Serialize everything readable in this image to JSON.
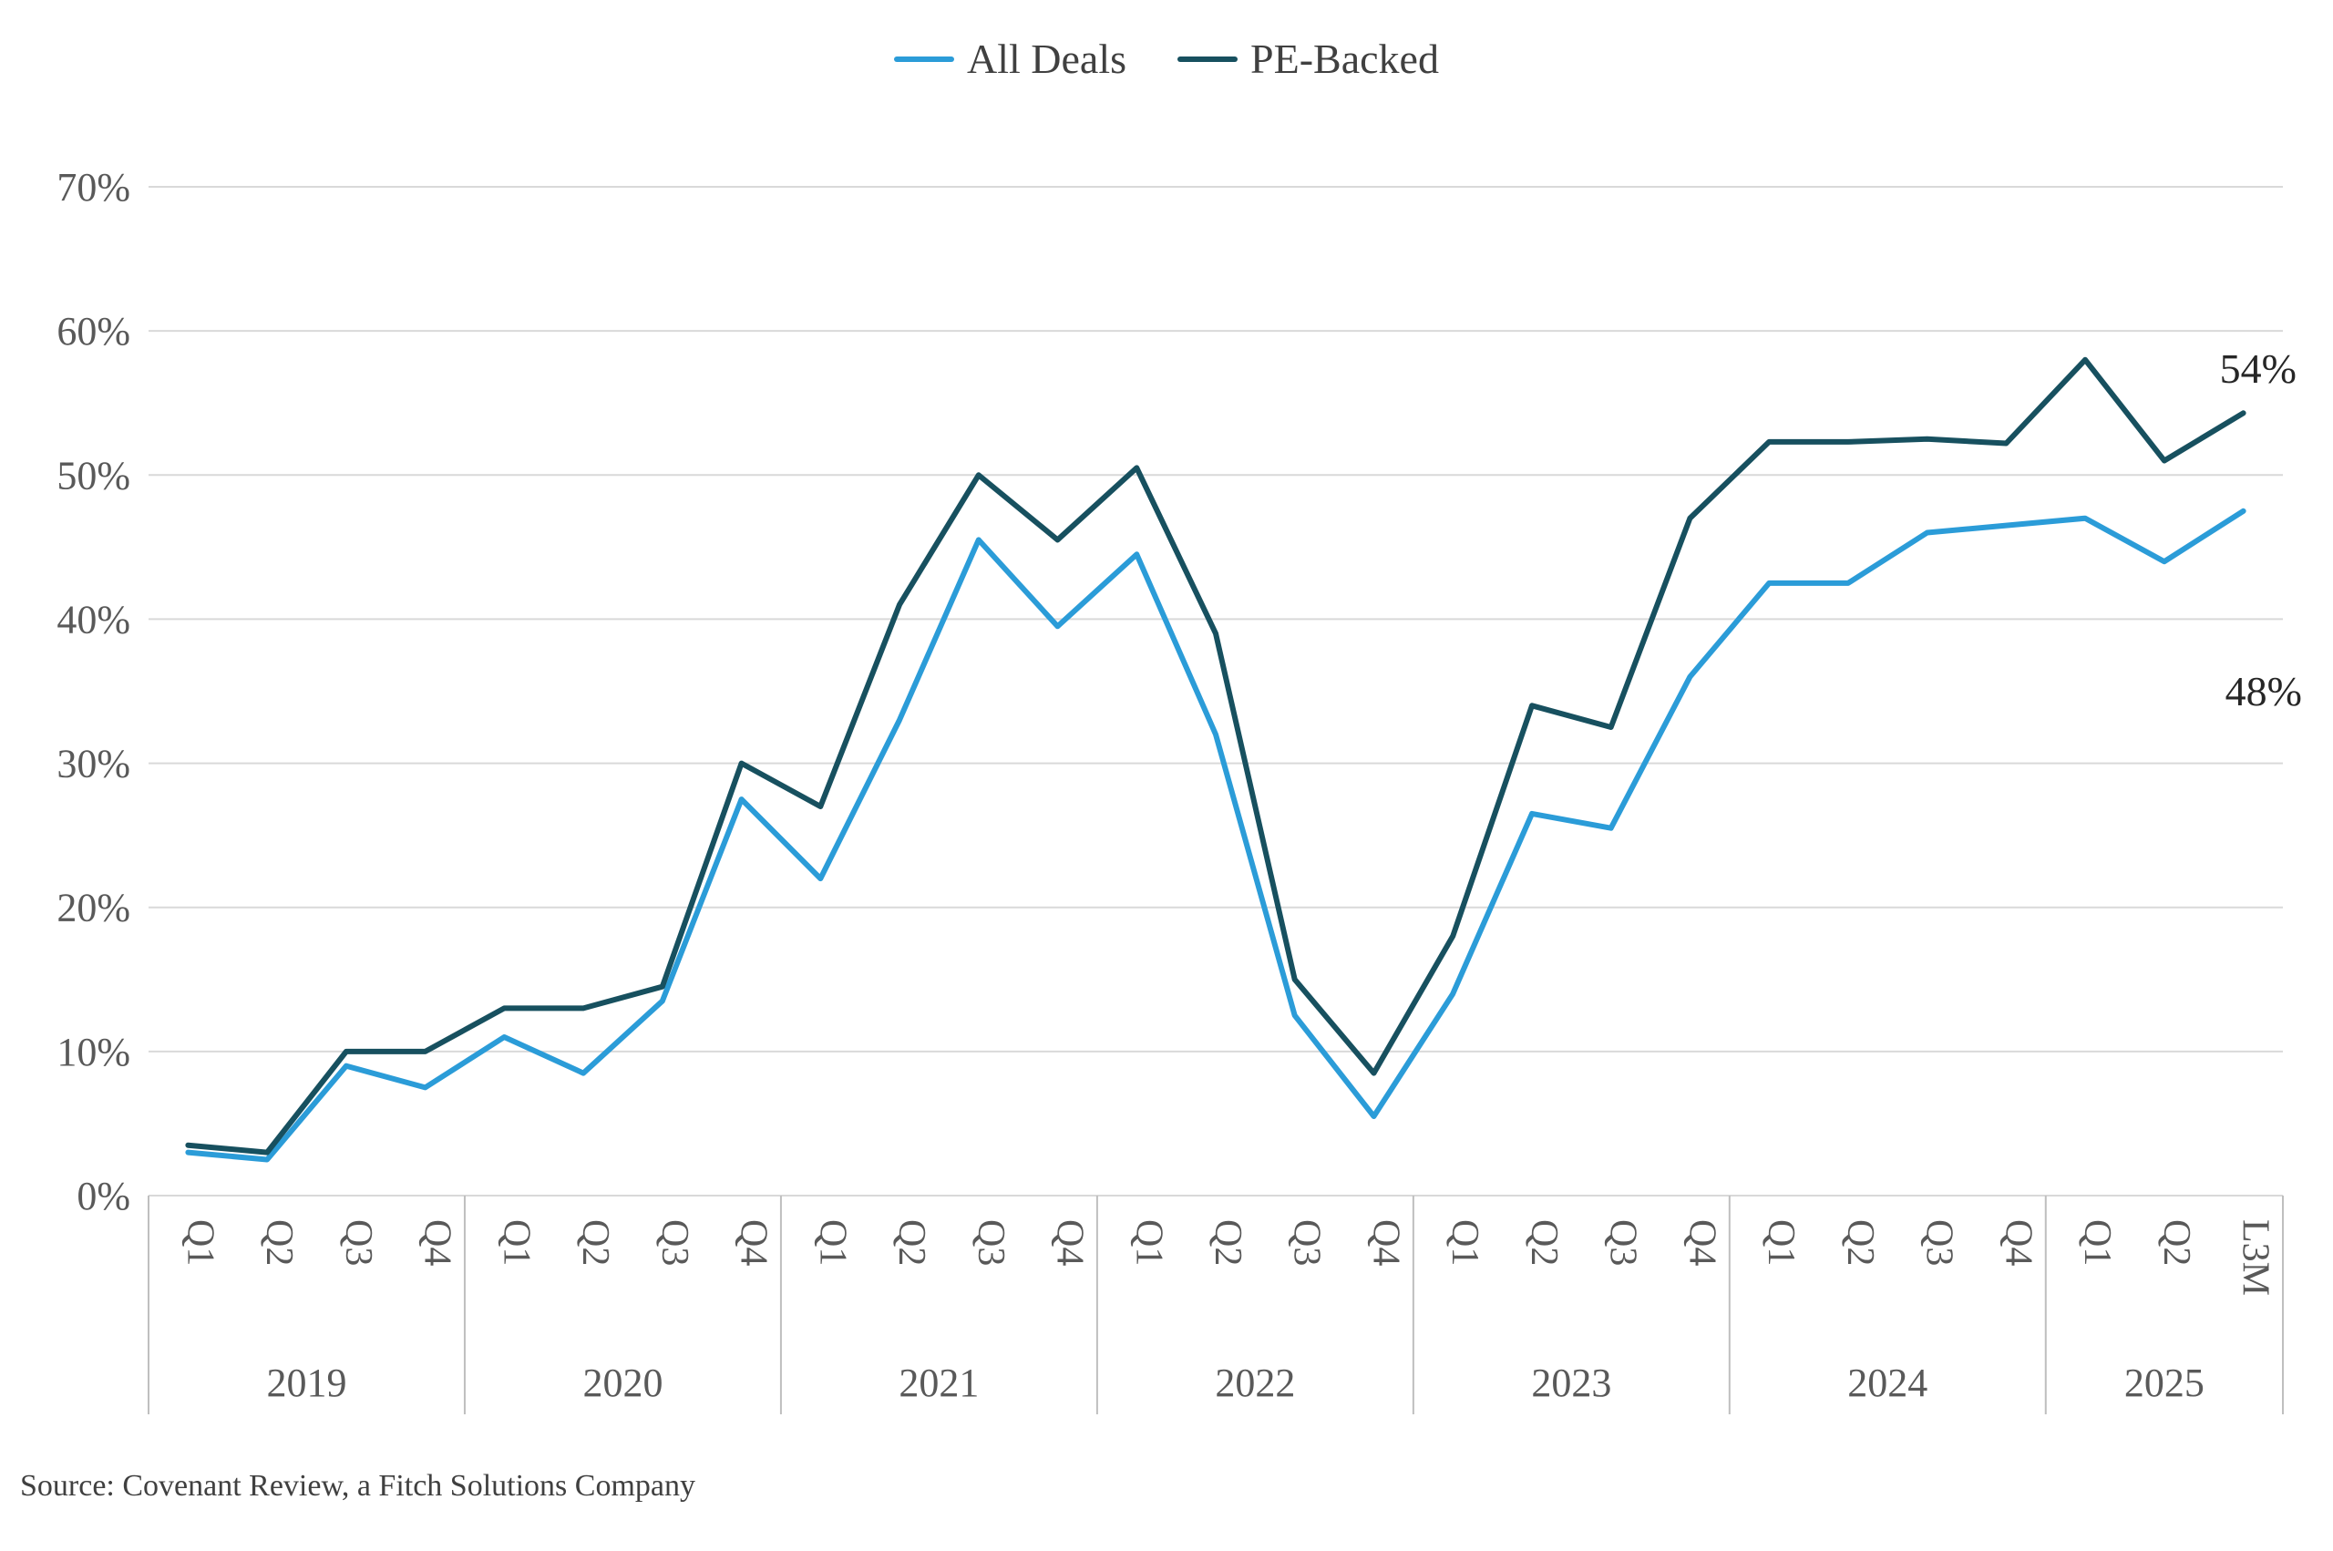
{
  "source": "Source: Covenant Review, a Fitch Solutions Company",
  "chart_data": {
    "type": "line",
    "title": "",
    "xlabel": "",
    "ylabel": "",
    "ylim": [
      0,
      70
    ],
    "ytick_step": 10,
    "ytick_suffix": "%",
    "grid": "horizontal",
    "legend_position": "top-center",
    "quarters": [
      "Q1",
      "Q2",
      "Q3",
      "Q4",
      "Q1",
      "Q2",
      "Q3",
      "Q4",
      "Q1",
      "Q2",
      "Q3",
      "Q4",
      "Q1",
      "Q2",
      "Q3",
      "Q4",
      "Q1",
      "Q2",
      "Q3",
      "Q4",
      "Q1",
      "Q2",
      "Q3",
      "Q4",
      "Q1",
      "Q2",
      "L3M"
    ],
    "year_groups": [
      {
        "label": "2019",
        "span": 4
      },
      {
        "label": "2020",
        "span": 4
      },
      {
        "label": "2021",
        "span": 4
      },
      {
        "label": "2022",
        "span": 4
      },
      {
        "label": "2023",
        "span": 4
      },
      {
        "label": "2024",
        "span": 4
      },
      {
        "label": "2025",
        "span": 3
      }
    ],
    "series": [
      {
        "name": "All Deals",
        "color": "#2B9CD8",
        "values": [
          3,
          2.5,
          9,
          7.5,
          11,
          8.5,
          13.5,
          27.5,
          22,
          33,
          45.5,
          39.5,
          44.5,
          32,
          12.5,
          5.5,
          14,
          26.5,
          25.5,
          36,
          42.5,
          42.5,
          46,
          46.5,
          47,
          44,
          47.5
        ]
      },
      {
        "name": "PE-Backed",
        "color": "#17505F",
        "values": [
          3.5,
          3,
          10,
          10,
          13,
          13,
          14.5,
          30,
          27,
          41,
          50,
          45.5,
          50.5,
          39,
          15,
          8.5,
          18,
          34,
          32.5,
          47,
          52.3,
          52.3,
          52.5,
          52.2,
          58,
          51,
          54.3
        ]
      }
    ],
    "annotations": [
      {
        "text": "54%",
        "series": "PE-Backed",
        "point": "L3M"
      },
      {
        "text": "48%",
        "series": "All Deals",
        "point": "L3M"
      }
    ],
    "colors": {
      "gridline": "#d9d9d9",
      "separator": "#bfbfbf",
      "axis_text": "#595959",
      "legend_text": "#404040",
      "annotation_text": "#262626"
    }
  }
}
